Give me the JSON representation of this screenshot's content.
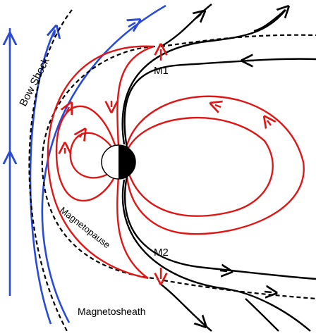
{
  "labels": {
    "bow_shock": "Bow Shock",
    "magnetopause": "Magnetopause",
    "magnetosheath": "Magnetosheath",
    "m1": "M1",
    "m2": "M2"
  },
  "colors": {
    "closed_field_lines": "#e01616",
    "open_field_lines": "#000000",
    "solar_wind_field_lines": "#2a4bd8",
    "boundaries": "#000000",
    "reconnection_arrows": "#e01616",
    "planet_day_side": "#ffffff",
    "planet_night_side": "#000000"
  }
}
